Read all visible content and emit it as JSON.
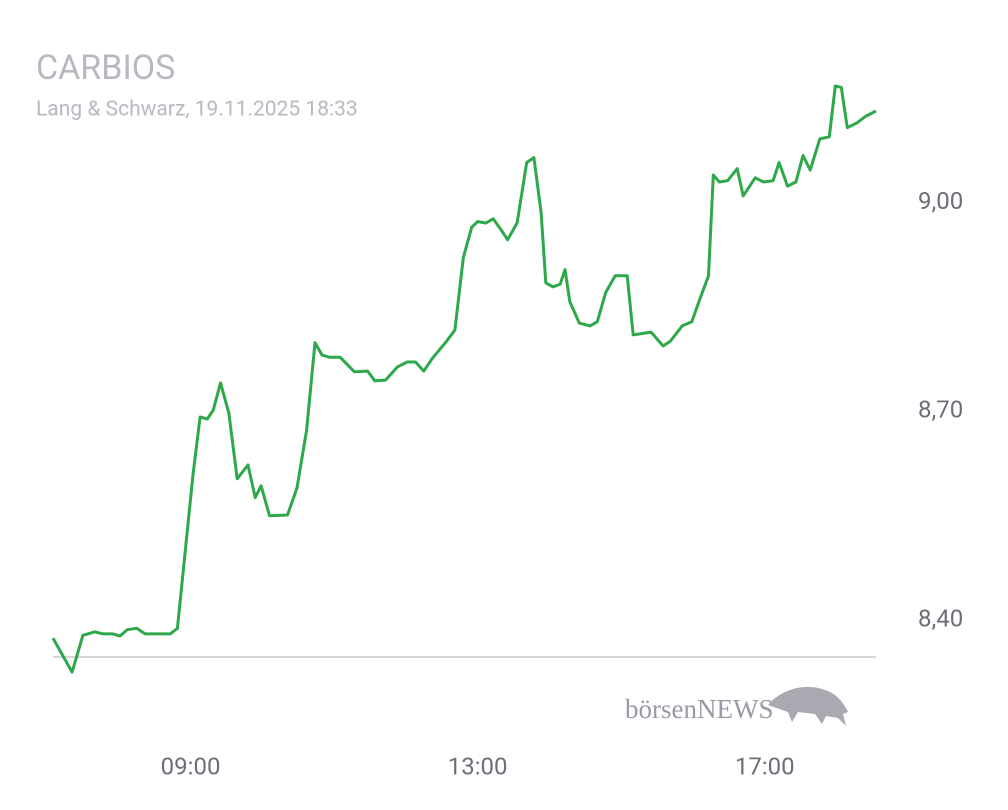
{
  "chart_data": {
    "type": "line",
    "title": "CARBIOS",
    "subtitle": "Lang & Schwarz, 19.11.2025 18:33",
    "logo": "börsenNEWS",
    "x": [
      "07:05",
      "07:21",
      "07:30",
      "07:40",
      "07:47",
      "07:55",
      "08:01",
      "08:07",
      "08:15",
      "08:22",
      "08:43",
      "08:49",
      "09:02",
      "09:08",
      "09:14",
      "09:19",
      "09:25",
      "09:32",
      "09:39",
      "09:48",
      "09:54",
      "09:59",
      "10:06",
      "10:21",
      "10:29",
      "10:37",
      "10:44",
      "10:50",
      "10:56",
      "11:05",
      "11:17",
      "11:28",
      "11:34",
      "11:43",
      "11:53",
      "12:01",
      "12:08",
      "12:15",
      "12:22",
      "12:34",
      "12:41",
      "12:48",
      "12:55",
      "13:00",
      "13:07",
      "13:13",
      "13:20",
      "13:25",
      "13:33",
      "13:41",
      "13:47",
      "13:53",
      "13:57",
      "14:03",
      "14:09",
      "14:13",
      "14:17",
      "14:25",
      "14:34",
      "14:40",
      "14:47",
      "14:55",
      "15:05",
      "15:10",
      "15:25",
      "15:35",
      "15:41",
      "15:51",
      "15:59",
      "16:06",
      "16:13",
      "16:17",
      "16:22",
      "16:29",
      "16:37",
      "16:42",
      "16:52",
      "16:59",
      "17:07",
      "17:12",
      "17:19",
      "17:26",
      "17:32",
      "17:38",
      "17:46",
      "17:54",
      "17:59",
      "18:04",
      "18:09",
      "18:17",
      "18:24",
      "18:33"
    ],
    "series": [
      {
        "color": "#2ea84a",
        "values": [
          8.374,
          8.325,
          8.378,
          8.383,
          8.38,
          8.38,
          8.377,
          8.386,
          8.388,
          8.38,
          8.38,
          8.388,
          8.609,
          8.692,
          8.689,
          8.702,
          8.741,
          8.698,
          8.603,
          8.623,
          8.576,
          8.593,
          8.55,
          8.551,
          8.59,
          8.673,
          8.799,
          8.781,
          8.778,
          8.778,
          8.757,
          8.758,
          8.744,
          8.745,
          8.764,
          8.771,
          8.771,
          8.758,
          8.776,
          8.801,
          8.817,
          8.921,
          8.965,
          8.973,
          8.971,
          8.977,
          8.96,
          8.947,
          8.971,
          9.058,
          9.065,
          8.986,
          8.885,
          8.879,
          8.883,
          8.904,
          8.858,
          8.827,
          8.823,
          8.829,
          8.871,
          8.895,
          8.895,
          8.81,
          8.814,
          8.794,
          8.801,
          8.823,
          8.829,
          8.863,
          8.895,
          9.04,
          9.03,
          9.032,
          9.049,
          9.01,
          9.036,
          9.03,
          9.032,
          9.058,
          9.024,
          9.03,
          9.068,
          9.047,
          9.092,
          9.095,
          9.168,
          9.166,
          9.108,
          9.115,
          9.124,
          9.132
        ]
      }
    ],
    "xlim": [
      "07:05",
      "18:33"
    ],
    "xticks": [
      "09:00",
      "13:00",
      "17:00"
    ],
    "ylim": [
      8.3,
      9.25
    ],
    "yticks": [
      {
        "value": 8.4,
        "label": "8,40"
      },
      {
        "value": 8.7,
        "label": "8,70"
      },
      {
        "value": 9,
        "label": "9,00"
      }
    ]
  }
}
